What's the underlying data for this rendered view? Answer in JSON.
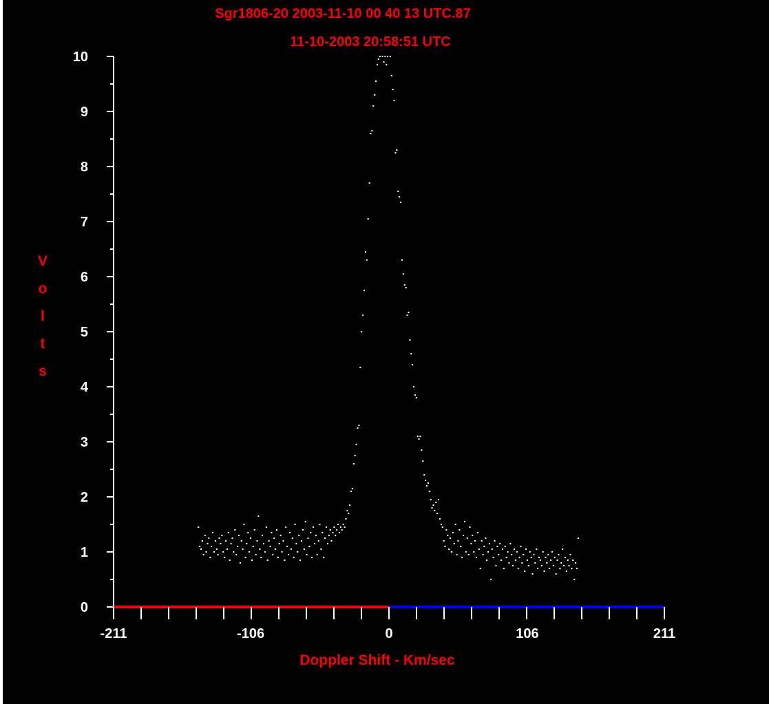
{
  "chart_data": {
    "type": "scatter",
    "title": "Sgr1806-20 2003-11-10 00 40 13 UTC.87",
    "subtitle": "11-10-2003  20:58:51 UTC",
    "xlabel": "Doppler Shift - Km/sec",
    "ylabel": "Volts",
    "xlim": [
      -211,
      211
    ],
    "ylim": [
      0,
      10
    ],
    "x_ticks": [
      -211,
      -106,
      0,
      106,
      211
    ],
    "y_ticks": [
      0,
      1,
      2,
      3,
      4,
      5,
      6,
      7,
      8,
      9,
      10
    ],
    "grid": false,
    "colors": {
      "background": "#000000",
      "title": "#ff0000",
      "axis": "#ffffff",
      "negative_shift_axis": "#ff0000",
      "positive_shift_axis": "#0000ff",
      "points": "#ffffff"
    },
    "points": [
      [
        -146,
        1.45
      ],
      [
        -145,
        1.1
      ],
      [
        -144,
        1.05
      ],
      [
        -143,
        1.2
      ],
      [
        -142,
        0.95
      ],
      [
        -141,
        1.3
      ],
      [
        -140,
        1.0
      ],
      [
        -139,
        1.15
      ],
      [
        -138,
        1.25
      ],
      [
        -137,
        0.9
      ],
      [
        -136,
        1.1
      ],
      [
        -135,
        1.35
      ],
      [
        -134,
        1.0
      ],
      [
        -133,
        1.2
      ],
      [
        -132,
        1.05
      ],
      [
        -131,
        0.95
      ],
      [
        -130,
        1.25
      ],
      [
        -129,
        1.15
      ],
      [
        -128,
        1.3
      ],
      [
        -127,
        1.0
      ],
      [
        -126,
        0.9
      ],
      [
        -125,
        1.2
      ],
      [
        -124,
        1.05
      ],
      [
        -123,
        1.35
      ],
      [
        -122,
        0.85
      ],
      [
        -121,
        1.15
      ],
      [
        -120,
        1.25
      ],
      [
        -119,
        1.0
      ],
      [
        -118,
        1.4
      ],
      [
        -117,
        0.95
      ],
      [
        -116,
        1.1
      ],
      [
        -115,
        1.3
      ],
      [
        -114,
        0.8
      ],
      [
        -113,
        1.2
      ],
      [
        -112,
        1.05
      ],
      [
        -111,
        1.5
      ],
      [
        -110,
        0.9
      ],
      [
        -109,
        1.15
      ],
      [
        -108,
        1.35
      ],
      [
        -107,
        1.0
      ],
      [
        -106,
        1.25
      ],
      [
        -105,
        0.85
      ],
      [
        -104,
        1.1
      ],
      [
        -103,
        1.4
      ],
      [
        -102,
        0.95
      ],
      [
        -101,
        1.2
      ],
      [
        -100,
        1.65
      ],
      [
        -99,
        1.05
      ],
      [
        -98,
        0.9
      ],
      [
        -97,
        1.3
      ],
      [
        -96,
        1.15
      ],
      [
        -95,
        1.0
      ],
      [
        -94,
        1.45
      ],
      [
        -93,
        0.85
      ],
      [
        -92,
        1.2
      ],
      [
        -91,
        1.1
      ],
      [
        -90,
        1.35
      ],
      [
        -89,
        0.95
      ],
      [
        -88,
        1.25
      ],
      [
        -87,
        1.05
      ],
      [
        -86,
        1.4
      ],
      [
        -85,
        0.9
      ],
      [
        -84,
        1.15
      ],
      [
        -83,
        1.3
      ],
      [
        -82,
        1.0
      ],
      [
        -81,
        1.2
      ],
      [
        -80,
        0.85
      ],
      [
        -79,
        1.45
      ],
      [
        -78,
        1.1
      ],
      [
        -77,
        0.95
      ],
      [
        -76,
        1.35
      ],
      [
        -75,
        1.05
      ],
      [
        -74,
        1.25
      ],
      [
        -73,
        0.9
      ],
      [
        -72,
        1.5
      ],
      [
        -71,
        1.15
      ],
      [
        -70,
        1.0
      ],
      [
        -69,
        1.3
      ],
      [
        -68,
        0.85
      ],
      [
        -67,
        1.2
      ],
      [
        -66,
        1.4
      ],
      [
        -65,
        1.05
      ],
      [
        -64,
        1.55
      ],
      [
        -63,
        0.95
      ],
      [
        -62,
        1.25
      ],
      [
        -61,
        1.1
      ],
      [
        -60,
        1.35
      ],
      [
        -59,
        0.9
      ],
      [
        -58,
        1.45
      ],
      [
        -57,
        1.15
      ],
      [
        -56,
        1.3
      ],
      [
        -55,
        0.95
      ],
      [
        -54,
        1.2
      ],
      [
        -53,
        1.5
      ],
      [
        -52,
        1.05
      ],
      [
        -51,
        1.35
      ],
      [
        -50,
        0.9
      ],
      [
        -49,
        1.25
      ],
      [
        -48,
        1.45
      ],
      [
        -47,
        1.15
      ],
      [
        -46,
        1.3
      ],
      [
        -45,
        1.4
      ],
      [
        -44,
        1.2
      ],
      [
        -43,
        1.35
      ],
      [
        -42,
        1.45
      ],
      [
        -41,
        1.3
      ],
      [
        -40,
        1.4
      ],
      [
        -39,
        1.5
      ],
      [
        -38,
        1.35
      ],
      [
        -37,
        1.45
      ],
      [
        -36,
        1.4
      ],
      [
        -35,
        1.5
      ],
      [
        -34,
        1.45
      ],
      [
        -33,
        1.6
      ],
      [
        -32,
        1.75
      ],
      [
        -31,
        1.7
      ],
      [
        -30,
        1.85
      ],
      [
        -29,
        2.1
      ],
      [
        -28,
        2.15
      ],
      [
        -27,
        2.6
      ],
      [
        -26,
        2.75
      ],
      [
        -25,
        2.95
      ],
      [
        -24,
        3.25
      ],
      [
        -23,
        3.3
      ],
      [
        -22,
        4.35
      ],
      [
        -21,
        5.0
      ],
      [
        -20,
        5.3
      ],
      [
        -19,
        5.75
      ],
      [
        -18,
        6.45
      ],
      [
        -17,
        6.3
      ],
      [
        -16,
        7.05
      ],
      [
        -15,
        7.7
      ],
      [
        -14,
        8.6
      ],
      [
        -13,
        8.65
      ],
      [
        -12,
        9.1
      ],
      [
        -11,
        9.3
      ],
      [
        -10,
        9.55
      ],
      [
        -9,
        9.85
      ],
      [
        -8,
        9.95
      ],
      [
        -7,
        10.0
      ],
      [
        -5,
        10.0
      ],
      [
        -4,
        9.9
      ],
      [
        -3,
        10.0
      ],
      [
        -2,
        9.85
      ],
      [
        -1,
        10.0
      ],
      [
        1,
        10.0
      ],
      [
        2,
        9.65
      ],
      [
        3,
        9.4
      ],
      [
        4,
        9.2
      ],
      [
        5,
        8.25
      ],
      [
        6,
        8.3
      ],
      [
        7,
        7.55
      ],
      [
        8,
        7.45
      ],
      [
        9,
        7.35
      ],
      [
        10,
        6.3
      ],
      [
        11,
        6.05
      ],
      [
        12,
        5.85
      ],
      [
        13,
        5.8
      ],
      [
        14,
        5.3
      ],
      [
        15,
        5.35
      ],
      [
        16,
        4.85
      ],
      [
        17,
        4.6
      ],
      [
        18,
        4.4
      ],
      [
        19,
        4.0
      ],
      [
        20,
        3.85
      ],
      [
        21,
        3.8
      ],
      [
        22,
        3.1
      ],
      [
        23,
        3.05
      ],
      [
        24,
        3.1
      ],
      [
        25,
        2.85
      ],
      [
        26,
        2.65
      ],
      [
        27,
        2.4
      ],
      [
        28,
        2.3
      ],
      [
        29,
        2.2
      ],
      [
        30,
        2.25
      ],
      [
        31,
        2.1
      ],
      [
        32,
        1.95
      ],
      [
        33,
        1.8
      ],
      [
        34,
        1.85
      ],
      [
        35,
        1.75
      ],
      [
        36,
        1.9
      ],
      [
        37,
        1.7
      ],
      [
        38,
        1.95
      ],
      [
        39,
        1.6
      ],
      [
        40,
        1.5
      ],
      [
        41,
        1.45
      ],
      [
        42,
        1.2
      ],
      [
        43,
        1.1
      ],
      [
        44,
        1.4
      ],
      [
        45,
        1.3
      ],
      [
        46,
        1.05
      ],
      [
        47,
        1.25
      ],
      [
        48,
        1.0
      ],
      [
        49,
        1.35
      ],
      [
        50,
        1.15
      ],
      [
        51,
        1.5
      ],
      [
        52,
        0.95
      ],
      [
        53,
        1.2
      ],
      [
        54,
        1.4
      ],
      [
        55,
        1.1
      ],
      [
        56,
        0.9
      ],
      [
        57,
        1.3
      ],
      [
        58,
        1.55
      ],
      [
        59,
        1.0
      ],
      [
        60,
        1.25
      ],
      [
        61,
        0.95
      ],
      [
        62,
        1.45
      ],
      [
        63,
        1.15
      ],
      [
        64,
        1.3
      ],
      [
        65,
        1.0
      ],
      [
        66,
        1.2
      ],
      [
        67,
        0.9
      ],
      [
        68,
        1.35
      ],
      [
        69,
        1.05
      ],
      [
        70,
        0.7
      ],
      [
        71,
        1.2
      ],
      [
        72,
        0.95
      ],
      [
        73,
        1.1
      ],
      [
        74,
        1.25
      ],
      [
        75,
        0.85
      ],
      [
        76,
        1.0
      ],
      [
        77,
        1.15
      ],
      [
        78,
        0.5
      ],
      [
        79,
        1.05
      ],
      [
        80,
        0.9
      ],
      [
        81,
        1.2
      ],
      [
        82,
        0.75
      ],
      [
        83,
        1.1
      ],
      [
        84,
        0.95
      ],
      [
        85,
        1.15
      ],
      [
        86,
        0.85
      ],
      [
        87,
        1.05
      ],
      [
        88,
        0.7
      ],
      [
        89,
        1.1
      ],
      [
        90,
        0.9
      ],
      [
        91,
        1.0
      ],
      [
        92,
        0.8
      ],
      [
        93,
        1.15
      ],
      [
        94,
        0.95
      ],
      [
        95,
        0.75
      ],
      [
        96,
        1.05
      ],
      [
        97,
        0.85
      ],
      [
        98,
        1.0
      ],
      [
        99,
        0.7
      ],
      [
        100,
        0.9
      ],
      [
        101,
        1.1
      ],
      [
        102,
        0.8
      ],
      [
        103,
        0.95
      ],
      [
        104,
        0.65
      ],
      [
        105,
        1.05
      ],
      [
        106,
        0.85
      ],
      [
        107,
        0.75
      ],
      [
        108,
        1.0
      ],
      [
        109,
        0.9
      ],
      [
        110,
        0.6
      ],
      [
        111,
        0.95
      ],
      [
        112,
        0.8
      ],
      [
        113,
        1.05
      ],
      [
        114,
        0.7
      ],
      [
        115,
        0.9
      ],
      [
        116,
        0.85
      ],
      [
        117,
        0.75
      ],
      [
        118,
        1.0
      ],
      [
        119,
        0.65
      ],
      [
        120,
        0.9
      ],
      [
        121,
        0.8
      ],
      [
        122,
        0.95
      ],
      [
        123,
        0.7
      ],
      [
        124,
        0.85
      ],
      [
        125,
        1.0
      ],
      [
        126,
        0.75
      ],
      [
        127,
        0.9
      ],
      [
        128,
        0.6
      ],
      [
        129,
        0.85
      ],
      [
        130,
        0.95
      ],
      [
        131,
        0.7
      ],
      [
        132,
        0.8
      ],
      [
        133,
        1.05
      ],
      [
        134,
        0.75
      ],
      [
        135,
        0.9
      ],
      [
        136,
        0.65
      ],
      [
        137,
        0.85
      ],
      [
        138,
        0.75
      ],
      [
        139,
        0.95
      ],
      [
        140,
        0.7
      ],
      [
        141,
        0.85
      ],
      [
        142,
        0.5
      ],
      [
        143,
        0.8
      ],
      [
        144,
        0.7
      ],
      [
        145,
        1.25
      ]
    ]
  }
}
